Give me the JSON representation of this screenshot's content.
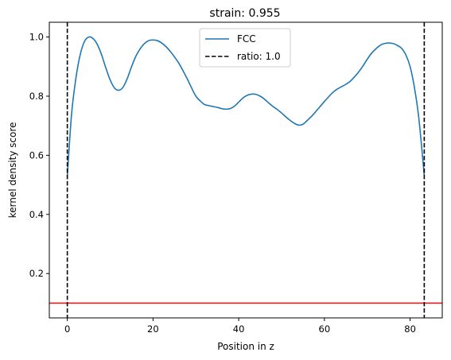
{
  "chart_data": {
    "type": "line",
    "title": "strain: 0.955",
    "xlabel": "Position in z",
    "ylabel": "kernel density score",
    "xlim": [
      -4.2,
      87.5
    ],
    "ylim": [
      0.05,
      1.05
    ],
    "xticks": [
      0,
      20,
      40,
      60,
      80
    ],
    "xtick_labels": [
      "0",
      "20",
      "40",
      "60",
      "80"
    ],
    "yticks": [
      0.2,
      0.4,
      0.6,
      0.8,
      1.0
    ],
    "ytick_labels": [
      "0.2",
      "0.4",
      "0.6",
      "0.8",
      "1.0"
    ],
    "grid": false,
    "legend_position": "upper center",
    "series": [
      {
        "name": "FCC",
        "color": "#1f77b4",
        "style": "solid",
        "x": [
          0,
          1,
          2,
          3,
          4,
          5,
          6,
          7,
          8,
          9,
          10,
          11,
          12,
          13,
          14,
          15,
          16,
          17,
          18,
          19,
          20,
          21,
          22,
          23,
          24,
          25,
          26,
          27,
          28,
          29,
          30,
          31,
          32,
          33,
          34,
          35,
          36,
          37,
          38,
          39,
          40,
          41,
          42,
          43,
          44,
          45,
          46,
          47,
          48,
          49,
          50,
          51,
          52,
          53,
          54,
          55,
          56,
          57,
          58,
          59,
          60,
          61,
          62,
          63,
          64,
          65,
          66,
          67,
          68,
          69,
          70,
          71,
          72,
          73,
          74,
          75,
          76,
          77,
          78,
          79,
          80,
          81,
          82,
          83,
          83.3
        ],
        "y": [
          0.53,
          0.74,
          0.86,
          0.94,
          0.985,
          1.0,
          0.995,
          0.975,
          0.94,
          0.895,
          0.855,
          0.828,
          0.82,
          0.83,
          0.86,
          0.9,
          0.935,
          0.96,
          0.978,
          0.988,
          0.99,
          0.988,
          0.98,
          0.968,
          0.952,
          0.933,
          0.912,
          0.886,
          0.858,
          0.828,
          0.8,
          0.784,
          0.772,
          0.768,
          0.765,
          0.762,
          0.758,
          0.756,
          0.758,
          0.766,
          0.78,
          0.794,
          0.803,
          0.807,
          0.806,
          0.8,
          0.79,
          0.777,
          0.765,
          0.755,
          0.743,
          0.73,
          0.718,
          0.708,
          0.702,
          0.705,
          0.718,
          0.732,
          0.748,
          0.765,
          0.782,
          0.798,
          0.813,
          0.824,
          0.832,
          0.84,
          0.85,
          0.865,
          0.882,
          0.902,
          0.925,
          0.945,
          0.96,
          0.972,
          0.978,
          0.98,
          0.978,
          0.972,
          0.962,
          0.94,
          0.9,
          0.83,
          0.73,
          0.58,
          0.53
        ]
      },
      {
        "name": "ratio: 1.0",
        "color": "#000000",
        "style": "dashed",
        "x_lines": [
          0,
          83.3
        ]
      }
    ],
    "hline": {
      "y": 0.1,
      "color": "#e41a1c"
    }
  }
}
